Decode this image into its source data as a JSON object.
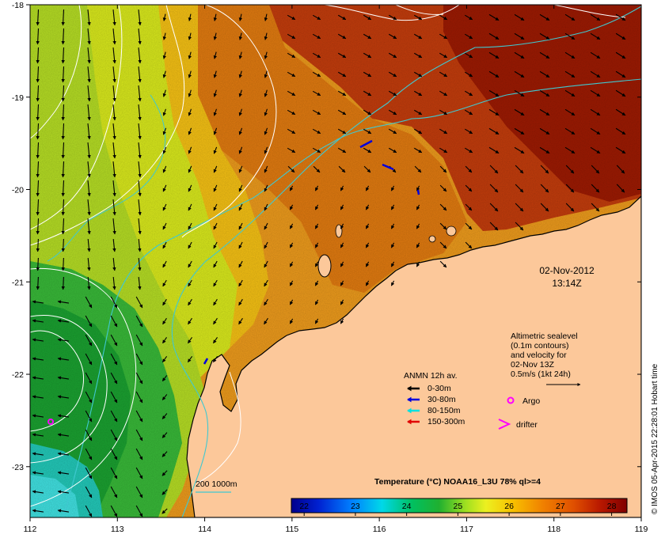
{
  "axes": {
    "lon_ticks": [
      "112",
      "113",
      "114",
      "115",
      "116",
      "117",
      "118",
      "119"
    ],
    "lat_ticks": [
      "-18",
      "-19",
      "-20",
      "-21",
      "-22",
      "-23"
    ],
    "lon_range": [
      112,
      119
    ],
    "lat_range": [
      -23.55,
      -18.0
    ]
  },
  "timestamp": {
    "date": "02-Nov-2012",
    "time": "13:14Z"
  },
  "altimetry_note": {
    "line1": "Altimetric sealevel",
    "line2": "(0.1m contours)",
    "line3": "and velocity for",
    "line4": "02-Nov 13Z",
    "line5": "0.5m/s (1kt 24h)"
  },
  "anmn_legend": {
    "title": "ANMN 12h av.",
    "items": [
      {
        "label": "0-30m",
        "color": "#000000"
      },
      {
        "label": "30-80m",
        "color": "#0000dd"
      },
      {
        "label": "80-150m",
        "color": "#00e0e0"
      },
      {
        "label": "150-300m",
        "color": "#e00000"
      }
    ]
  },
  "markers": {
    "argo_label": "Argo",
    "argo_color": "#ff00ff",
    "drifter_label": "drifter",
    "drifter_color": "#ff00ff"
  },
  "isobath_legend": {
    "label": "200  1000m",
    "color": "#40c8d0"
  },
  "colorbar": {
    "title": "Temperature (°C) NOAA16_L3U 78% ql>=4",
    "ticks": [
      "22",
      "23",
      "24",
      "25",
      "26",
      "27",
      "28"
    ],
    "range": [
      21.75,
      28.3
    ]
  },
  "credit": "© IMOS 05-Apr-2015 22:28:01 Hobart time",
  "colors": {
    "land": "#fcc89a",
    "background": "#ffffff"
  }
}
